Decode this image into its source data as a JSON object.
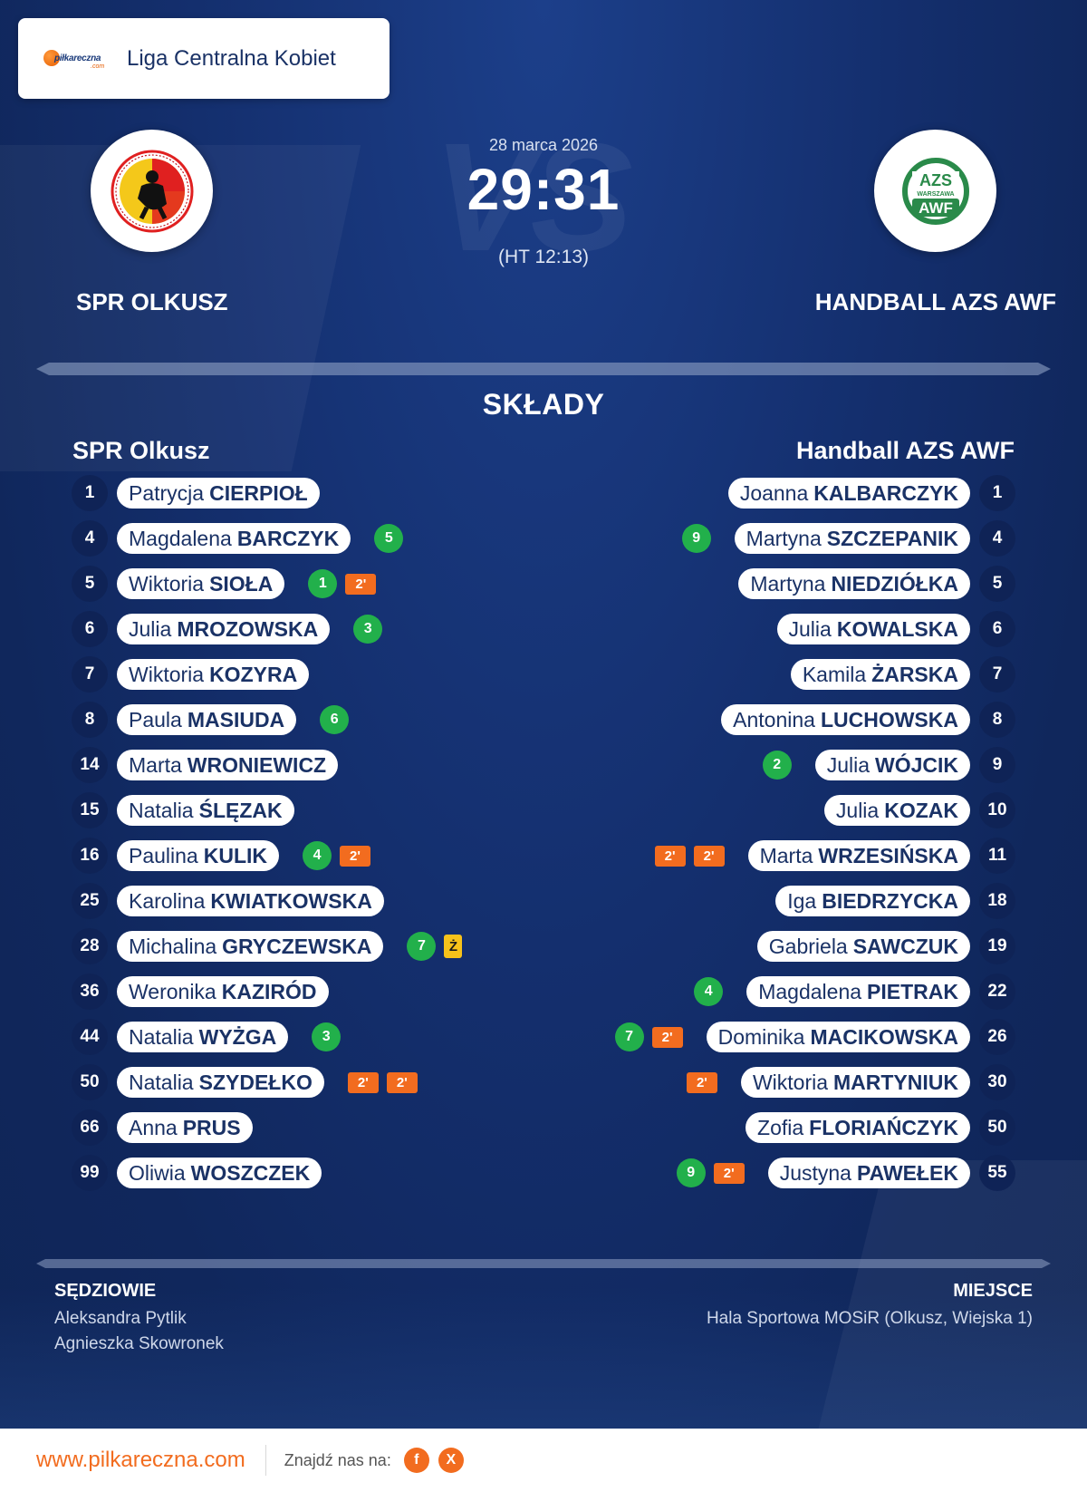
{
  "league": {
    "brand": "piłkareczna",
    "brand_suffix": ".com",
    "name": "Liga Centralna Kobiet"
  },
  "match": {
    "date": "28 marca 2026",
    "score": "29:31",
    "halftime": "(HT 12:13)",
    "vs_watermark": "VS",
    "home_team": "SPR OLKUSZ",
    "away_team": "HANDBALL AZS AWF",
    "away_crest_top": "AZS",
    "away_crest_mid": "WARSZAWA",
    "away_crest_bottom": "AWF"
  },
  "lineups": {
    "title": "SKŁADY",
    "home_name": "SPR Olkusz",
    "away_name": "Handball AZS AWF",
    "home": [
      {
        "number": "1",
        "first": "Patrycja",
        "last": "CIERPIOŁ",
        "badges": []
      },
      {
        "number": "4",
        "first": "Magdalena",
        "last": "BARCZYK",
        "badges": [
          {
            "type": "goal",
            "text": "5"
          }
        ]
      },
      {
        "number": "5",
        "first": "Wiktoria",
        "last": "SIOŁA",
        "badges": [
          {
            "type": "goal",
            "text": "1"
          },
          {
            "type": "susp",
            "text": "2'"
          }
        ]
      },
      {
        "number": "6",
        "first": "Julia",
        "last": "MROZOWSKA",
        "badges": [
          {
            "type": "goal",
            "text": "3"
          }
        ]
      },
      {
        "number": "7",
        "first": "Wiktoria",
        "last": "KOZYRA",
        "badges": []
      },
      {
        "number": "8",
        "first": "Paula",
        "last": "MASIUDA",
        "badges": [
          {
            "type": "goal",
            "text": "6"
          }
        ]
      },
      {
        "number": "14",
        "first": "Marta",
        "last": "WRONIEWICZ",
        "badges": []
      },
      {
        "number": "15",
        "first": "Natalia",
        "last": "ŚLĘZAK",
        "badges": []
      },
      {
        "number": "16",
        "first": "Paulina",
        "last": "KULIK",
        "badges": [
          {
            "type": "goal",
            "text": "4"
          },
          {
            "type": "susp",
            "text": "2'"
          }
        ]
      },
      {
        "number": "25",
        "first": "Karolina",
        "last": "KWIATKOWSKA",
        "badges": []
      },
      {
        "number": "28",
        "first": "Michalina",
        "last": "GRYCZEWSKA",
        "badges": [
          {
            "type": "goal",
            "text": "7"
          },
          {
            "type": "yellow",
            "text": "Ż"
          }
        ]
      },
      {
        "number": "36",
        "first": "Weronika",
        "last": "KAZIRÓD",
        "badges": []
      },
      {
        "number": "44",
        "first": "Natalia",
        "last": "WYŻGA",
        "badges": [
          {
            "type": "goal",
            "text": "3"
          }
        ]
      },
      {
        "number": "50",
        "first": "Natalia",
        "last": "SZYDEŁKO",
        "badges": [
          {
            "type": "susp",
            "text": "2'"
          },
          {
            "type": "susp",
            "text": "2'"
          }
        ]
      },
      {
        "number": "66",
        "first": "Anna",
        "last": "PRUS",
        "badges": []
      },
      {
        "number": "99",
        "first": "Oliwia",
        "last": "WOSZCZEK",
        "badges": []
      }
    ],
    "away": [
      {
        "number": "1",
        "first": "Joanna",
        "last": "KALBARCZYK",
        "badges": []
      },
      {
        "number": "4",
        "first": "Martyna",
        "last": "SZCZEPANIK",
        "badges": [
          {
            "type": "goal",
            "text": "9"
          }
        ]
      },
      {
        "number": "5",
        "first": "Martyna",
        "last": "NIEDZIÓŁKA",
        "badges": []
      },
      {
        "number": "6",
        "first": "Julia",
        "last": "KOWALSKA",
        "badges": []
      },
      {
        "number": "7",
        "first": "Kamila",
        "last": "ŻARSKA",
        "badges": []
      },
      {
        "number": "8",
        "first": "Antonina",
        "last": "LUCHOWSKA",
        "badges": []
      },
      {
        "number": "9",
        "first": "Julia",
        "last": "WÓJCIK",
        "badges": [
          {
            "type": "goal",
            "text": "2"
          }
        ]
      },
      {
        "number": "10",
        "first": "Julia",
        "last": "KOZAK",
        "badges": []
      },
      {
        "number": "11",
        "first": "Marta",
        "last": "WRZESIŃSKA",
        "badges": [
          {
            "type": "susp",
            "text": "2'"
          },
          {
            "type": "susp",
            "text": "2'"
          }
        ]
      },
      {
        "number": "18",
        "first": "Iga",
        "last": "BIEDRZYCKA",
        "badges": []
      },
      {
        "number": "19",
        "first": "Gabriela",
        "last": "SAWCZUK",
        "badges": []
      },
      {
        "number": "22",
        "first": "Magdalena",
        "last": "PIETRAK",
        "badges": [
          {
            "type": "goal",
            "text": "4"
          }
        ]
      },
      {
        "number": "26",
        "first": "Dominika",
        "last": "MACIKOWSKA",
        "badges": [
          {
            "type": "susp",
            "text": "2'"
          },
          {
            "type": "goal",
            "text": "7"
          }
        ]
      },
      {
        "number": "30",
        "first": "Wiktoria",
        "last": "MARTYNIUK",
        "badges": [
          {
            "type": "susp",
            "text": "2'"
          }
        ]
      },
      {
        "number": "50",
        "first": "Zofia",
        "last": "FLORIAŃCZYK",
        "badges": []
      },
      {
        "number": "55",
        "first": "Justyna",
        "last": "PAWEŁEK",
        "badges": [
          {
            "type": "susp",
            "text": "2'"
          },
          {
            "type": "goal",
            "text": "9"
          }
        ]
      }
    ]
  },
  "officials": {
    "referees_label": "SĘDZIOWIE",
    "referees": [
      "Aleksandra Pytlik",
      "Agnieszka Skowronek"
    ],
    "venue_label": "MIEJSCE",
    "venue": "Hala Sportowa MOSiR (Olkusz, Wiejska 1)"
  },
  "footer": {
    "website": "www.pilkareczna.com",
    "find_us": "Znajdź nas na:",
    "social": [
      {
        "name": "facebook-icon",
        "glyph": "f"
      },
      {
        "name": "x-icon",
        "glyph": "X"
      }
    ]
  },
  "colors": {
    "background": "#142f6e",
    "accent": "#f26c1f",
    "goal": "#22b04b",
    "suspension": "#f26c1f",
    "yellow_card": "#f7c21a"
  }
}
